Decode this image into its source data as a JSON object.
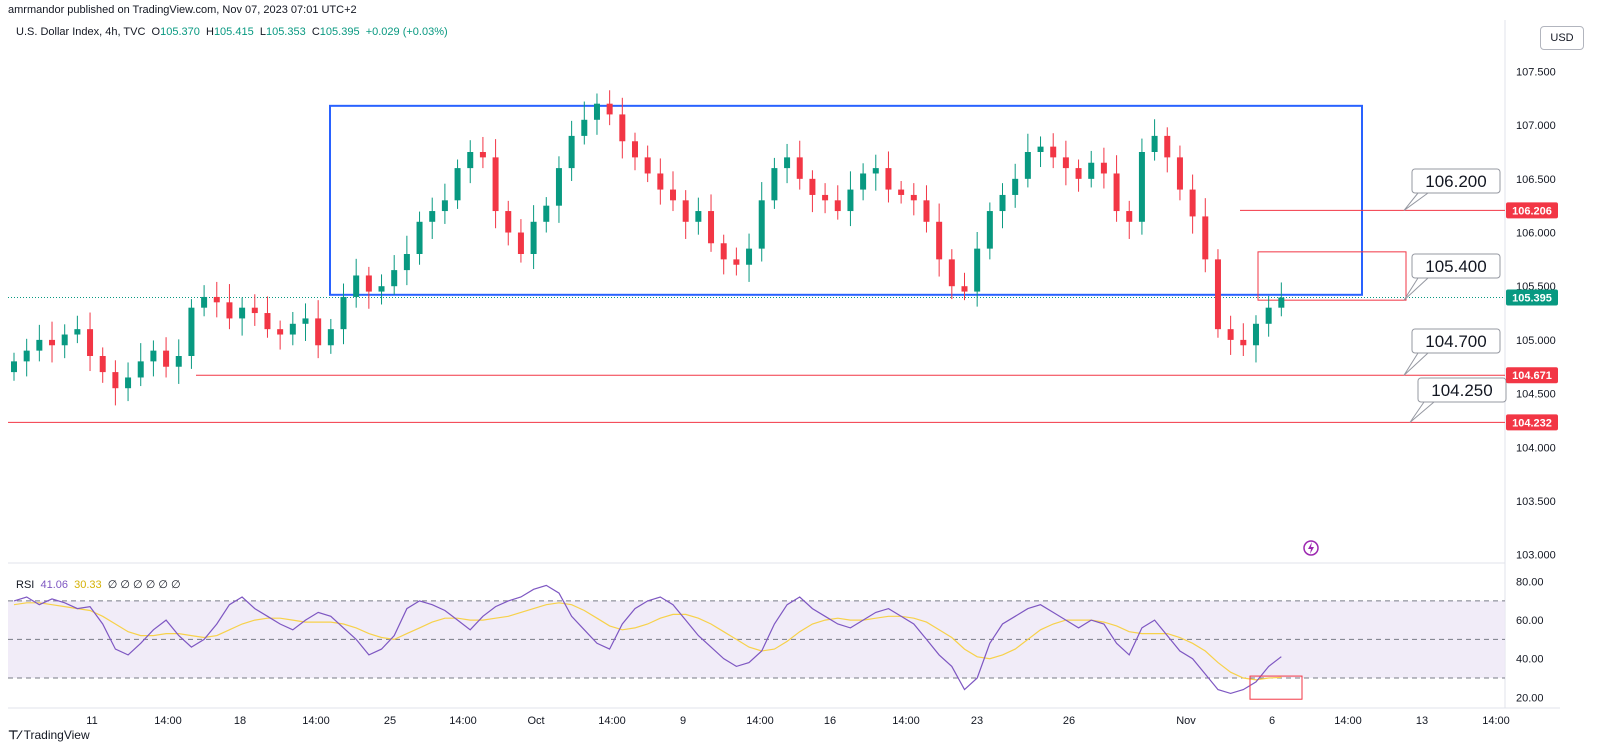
{
  "header": {
    "publisher_line": "amrmandor published on TradingView.com, Nov 07, 2023 07:01 UTC+2"
  },
  "legend": {
    "symbol": "U.S. Dollar Index, 4h, TVC",
    "o_label": "O",
    "o_value": "105.370",
    "h_label": "H",
    "h_value": "105.415",
    "l_label": "L",
    "l_value": "105.353",
    "c_label": "C",
    "c_value": "105.395",
    "change": "+0.029 (+0.03%)"
  },
  "currency": "USD",
  "rsi_legend": {
    "name": "RSI",
    "rsi_value": "41.06",
    "ma_value": "30.33",
    "extras": "∅ ∅ ∅ ∅ ∅ ∅"
  },
  "footer": {
    "brand": "TradingView"
  },
  "colors": {
    "up": "#089981",
    "down": "#f23645",
    "box": "#2962ff",
    "level": "#f23645",
    "rsi_line": "#7e57c2",
    "rsi_ma": "#f7d14a",
    "rsi_band": "#ede7f6"
  },
  "chart_data": {
    "type": "candlestick",
    "y_ticks": [
      "107.500",
      "107.000",
      "106.500",
      "106.000",
      "105.500",
      "105.000",
      "104.500",
      "104.000",
      "103.500",
      "103.000"
    ],
    "ylim": [
      102.95,
      107.7
    ],
    "x_ticks": [
      "11",
      "14:00",
      "18",
      "14:00",
      "25",
      "14:00",
      "Oct",
      "14:00",
      "9",
      "14:00",
      "16",
      "14:00",
      "23",
      "26",
      "Nov",
      "6",
      "14:00",
      "13",
      "14:00"
    ],
    "price_marker": {
      "value": 105.395,
      "label": "105.395"
    },
    "levels": [
      {
        "callout": "106.200",
        "marker": "106.206",
        "value": 106.206
      },
      {
        "callout": "105.400",
        "marker": "105.395",
        "value": 105.395
      },
      {
        "callout": "104.700",
        "marker": "104.671",
        "value": 104.671
      },
      {
        "callout": "104.250",
        "marker": "104.232",
        "value": 104.232
      }
    ],
    "range_box": {
      "top": 107.18,
      "bottom": 105.42
    },
    "closes": [
      104.8,
      104.9,
      105.0,
      104.95,
      105.05,
      105.1,
      104.85,
      104.7,
      104.55,
      104.65,
      104.8,
      104.9,
      104.75,
      104.85,
      105.3,
      105.4,
      105.35,
      105.2,
      105.3,
      105.25,
      105.1,
      105.05,
      105.15,
      105.2,
      104.95,
      105.1,
      105.4,
      105.6,
      105.45,
      105.5,
      105.65,
      105.8,
      106.1,
      106.2,
      106.3,
      106.6,
      106.75,
      106.7,
      106.2,
      106.0,
      105.8,
      106.1,
      106.25,
      106.6,
      106.9,
      107.05,
      107.2,
      107.1,
      106.85,
      106.7,
      106.55,
      106.4,
      106.3,
      106.1,
      106.2,
      105.9,
      105.75,
      105.7,
      105.85,
      106.3,
      106.6,
      106.7,
      106.5,
      106.35,
      106.3,
      106.2,
      106.4,
      106.55,
      106.6,
      106.4,
      106.35,
      106.3,
      106.1,
      105.75,
      105.5,
      105.45,
      105.85,
      106.2,
      106.35,
      106.5,
      106.75,
      106.8,
      106.7,
      106.6,
      106.5,
      106.65,
      106.55,
      106.2,
      106.1,
      106.75,
      106.9,
      106.7,
      106.4,
      106.15,
      105.75,
      105.1,
      105.0,
      104.95,
      105.15,
      105.3,
      105.395
    ],
    "rsi": {
      "y_ticks": [
        "80.00",
        "60.00",
        "40.00",
        "20.00"
      ],
      "ylim": [
        16,
        86
      ],
      "band": [
        30,
        70
      ],
      "mid": 50,
      "values": [
        70,
        72,
        68,
        71,
        69,
        66,
        67,
        58,
        45,
        42,
        48,
        55,
        60,
        52,
        46,
        50,
        58,
        68,
        72,
        66,
        62,
        58,
        55,
        60,
        64,
        62,
        56,
        50,
        42,
        45,
        52,
        66,
        70,
        68,
        65,
        60,
        55,
        62,
        67,
        70,
        72,
        76,
        78,
        74,
        62,
        55,
        48,
        45,
        58,
        66,
        70,
        72,
        68,
        60,
        52,
        46,
        40,
        36,
        38,
        44,
        58,
        68,
        72,
        66,
        62,
        58,
        56,
        60,
        64,
        66,
        62,
        58,
        50,
        42,
        36,
        24,
        30,
        48,
        58,
        62,
        66,
        68,
        64,
        60,
        56,
        60,
        58,
        48,
        42,
        56,
        60,
        52,
        44,
        40,
        32,
        24,
        22,
        24,
        28,
        36,
        41.06
      ],
      "ma": [
        68,
        69,
        69,
        68,
        67,
        66,
        65,
        62,
        58,
        54,
        52,
        52,
        53,
        53,
        52,
        51,
        52,
        55,
        58,
        60,
        61,
        61,
        60,
        59,
        59,
        59,
        58,
        56,
        53,
        51,
        50,
        53,
        56,
        59,
        61,
        61,
        60,
        60,
        61,
        62,
        64,
        66,
        68,
        69,
        68,
        65,
        61,
        57,
        55,
        56,
        58,
        61,
        63,
        63,
        61,
        58,
        54,
        50,
        46,
        44,
        45,
        49,
        54,
        58,
        60,
        61,
        60,
        60,
        61,
        62,
        62,
        61,
        59,
        55,
        51,
        45,
        41,
        40,
        42,
        45,
        50,
        55,
        58,
        60,
        60,
        60,
        59,
        57,
        54,
        53,
        53,
        53,
        51,
        48,
        44,
        38,
        33,
        30,
        29,
        30,
        30.33
      ]
    }
  }
}
